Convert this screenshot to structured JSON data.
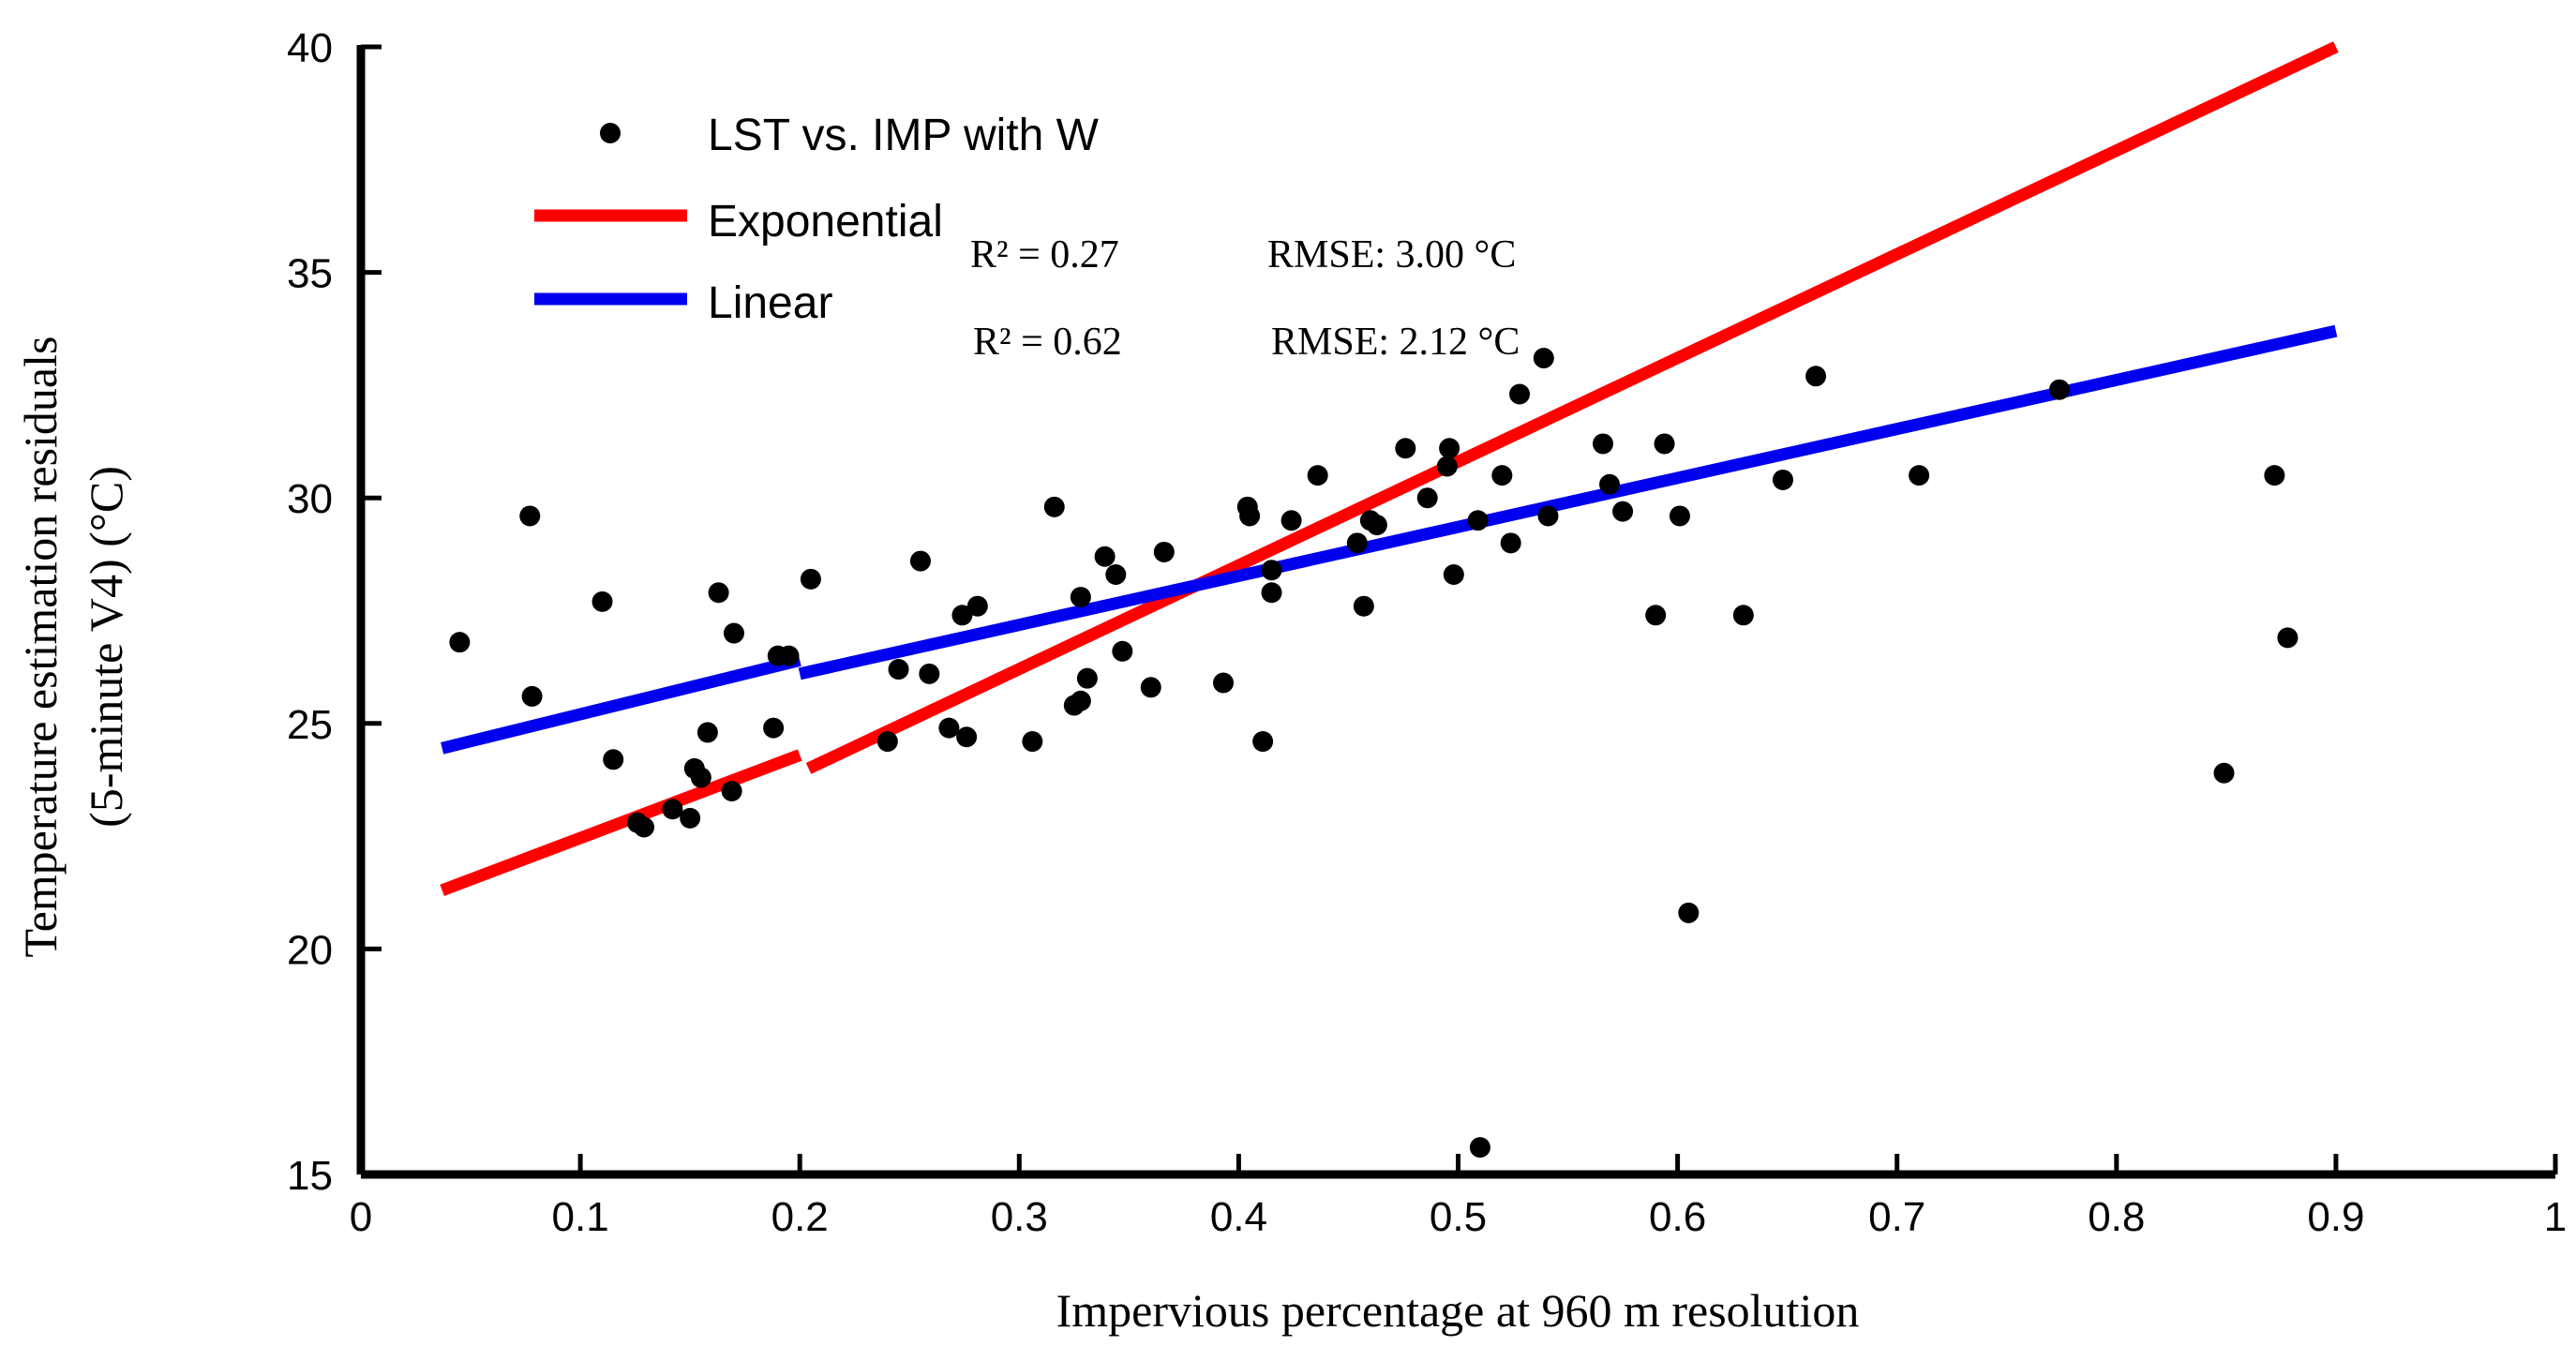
{
  "chart_data": {
    "type": "scatter",
    "title": "",
    "xlabel": "Impervious percentage at 960 m resolution",
    "ylabel_line1": "Temperature estimation residuals",
    "ylabel_line2": "(5-minute V4) (°C)",
    "xlim": [
      0,
      1
    ],
    "ylim": [
      15,
      40
    ],
    "x_ticks": [
      0,
      0.1,
      0.2,
      0.3,
      0.4,
      0.5,
      0.6,
      0.7,
      0.8,
      0.9,
      1
    ],
    "x_tick_labels": [
      "0",
      "0.1",
      "0.2",
      "0.3",
      "0.4",
      "0.5",
      "0.6",
      "0.7",
      "0.8",
      "0.9",
      "1"
    ],
    "y_ticks": [
      15,
      20,
      25,
      30,
      35,
      40
    ],
    "y_tick_labels": [
      "15",
      "20",
      "25",
      "30",
      "35",
      "40"
    ],
    "legend": {
      "position": "top-left",
      "items": [
        {
          "label": "LST vs. IMP with W",
          "kind": "marker",
          "color": "#000000"
        },
        {
          "label": "Exponential",
          "kind": "line",
          "color": "#ff0000"
        },
        {
          "label": "Linear",
          "kind": "line",
          "color": "#0000ee"
        }
      ]
    },
    "stats": [
      {
        "r2": "R² = 0.27",
        "rmse": "RMSE: 3.00 °C"
      },
      {
        "r2": "R² = 0.62",
        "rmse": "RMSE: 2.12 °C"
      }
    ],
    "series": [
      {
        "name": "LST vs. IMP with W",
        "kind": "scatter",
        "color": "#000000",
        "points": [
          [
            0.045,
            26.8
          ],
          [
            0.077,
            29.6
          ],
          [
            0.078,
            25.6
          ],
          [
            0.11,
            27.7
          ],
          [
            0.115,
            24.2
          ],
          [
            0.126,
            22.8
          ],
          [
            0.129,
            22.7
          ],
          [
            0.142,
            23.1
          ],
          [
            0.15,
            22.9
          ],
          [
            0.152,
            24.0
          ],
          [
            0.155,
            23.8
          ],
          [
            0.158,
            24.8
          ],
          [
            0.163,
            27.9
          ],
          [
            0.169,
            23.5
          ],
          [
            0.17,
            27.0
          ],
          [
            0.188,
            24.9
          ],
          [
            0.19,
            26.5
          ],
          [
            0.195,
            26.5
          ],
          [
            0.205,
            28.2
          ],
          [
            0.24,
            24.6
          ],
          [
            0.245,
            26.2
          ],
          [
            0.255,
            28.6
          ],
          [
            0.259,
            26.1
          ],
          [
            0.268,
            24.9
          ],
          [
            0.274,
            27.4
          ],
          [
            0.276,
            24.7
          ],
          [
            0.281,
            27.6
          ],
          [
            0.306,
            24.6
          ],
          [
            0.316,
            29.8
          ],
          [
            0.325,
            25.4
          ],
          [
            0.328,
            25.5
          ],
          [
            0.328,
            27.8
          ],
          [
            0.331,
            26.0
          ],
          [
            0.339,
            28.7
          ],
          [
            0.344,
            28.3
          ],
          [
            0.347,
            26.6
          ],
          [
            0.36,
            25.8
          ],
          [
            0.366,
            28.8
          ],
          [
            0.393,
            25.9
          ],
          [
            0.404,
            29.8
          ],
          [
            0.405,
            29.6
          ],
          [
            0.411,
            24.6
          ],
          [
            0.415,
            28.4
          ],
          [
            0.415,
            27.9
          ],
          [
            0.424,
            29.5
          ],
          [
            0.436,
            30.5
          ],
          [
            0.454,
            29.0
          ],
          [
            0.457,
            27.6
          ],
          [
            0.46,
            29.5
          ],
          [
            0.463,
            29.4
          ],
          [
            0.476,
            31.1
          ],
          [
            0.486,
            30.0
          ],
          [
            0.495,
            30.7
          ],
          [
            0.496,
            31.1
          ],
          [
            0.498,
            28.3
          ],
          [
            0.509,
            29.5
          ],
          [
            0.51,
            15.6
          ],
          [
            0.52,
            30.5
          ],
          [
            0.524,
            29.0
          ],
          [
            0.528,
            32.3
          ],
          [
            0.539,
            33.1
          ],
          [
            0.541,
            29.6
          ],
          [
            0.566,
            31.2
          ],
          [
            0.569,
            30.3
          ],
          [
            0.575,
            29.7
          ],
          [
            0.59,
            27.4
          ],
          [
            0.594,
            31.2
          ],
          [
            0.601,
            29.6
          ],
          [
            0.605,
            20.8
          ],
          [
            0.63,
            27.4
          ],
          [
            0.648,
            30.4
          ],
          [
            0.663,
            32.7
          ],
          [
            0.71,
            30.5
          ],
          [
            0.774,
            32.4
          ],
          [
            0.849,
            23.9
          ],
          [
            0.872,
            30.5
          ],
          [
            0.878,
            26.9
          ]
        ]
      },
      {
        "name": "Exponential",
        "kind": "line",
        "color": "#ff0000",
        "segments": [
          [
            [
              0.037,
              21.3
            ],
            [
              0.2,
              24.3
            ]
          ],
          [
            [
              0.204,
              24.0
            ],
            [
              0.9,
              40.0
            ]
          ]
        ]
      },
      {
        "name": "Linear",
        "kind": "line",
        "color": "#0000ee",
        "segments": [
          [
            [
              0.037,
              24.45
            ],
            [
              0.2,
              26.4
            ]
          ],
          [
            [
              0.2,
              26.1
            ],
            [
              0.9,
              33.7
            ]
          ]
        ]
      }
    ]
  }
}
